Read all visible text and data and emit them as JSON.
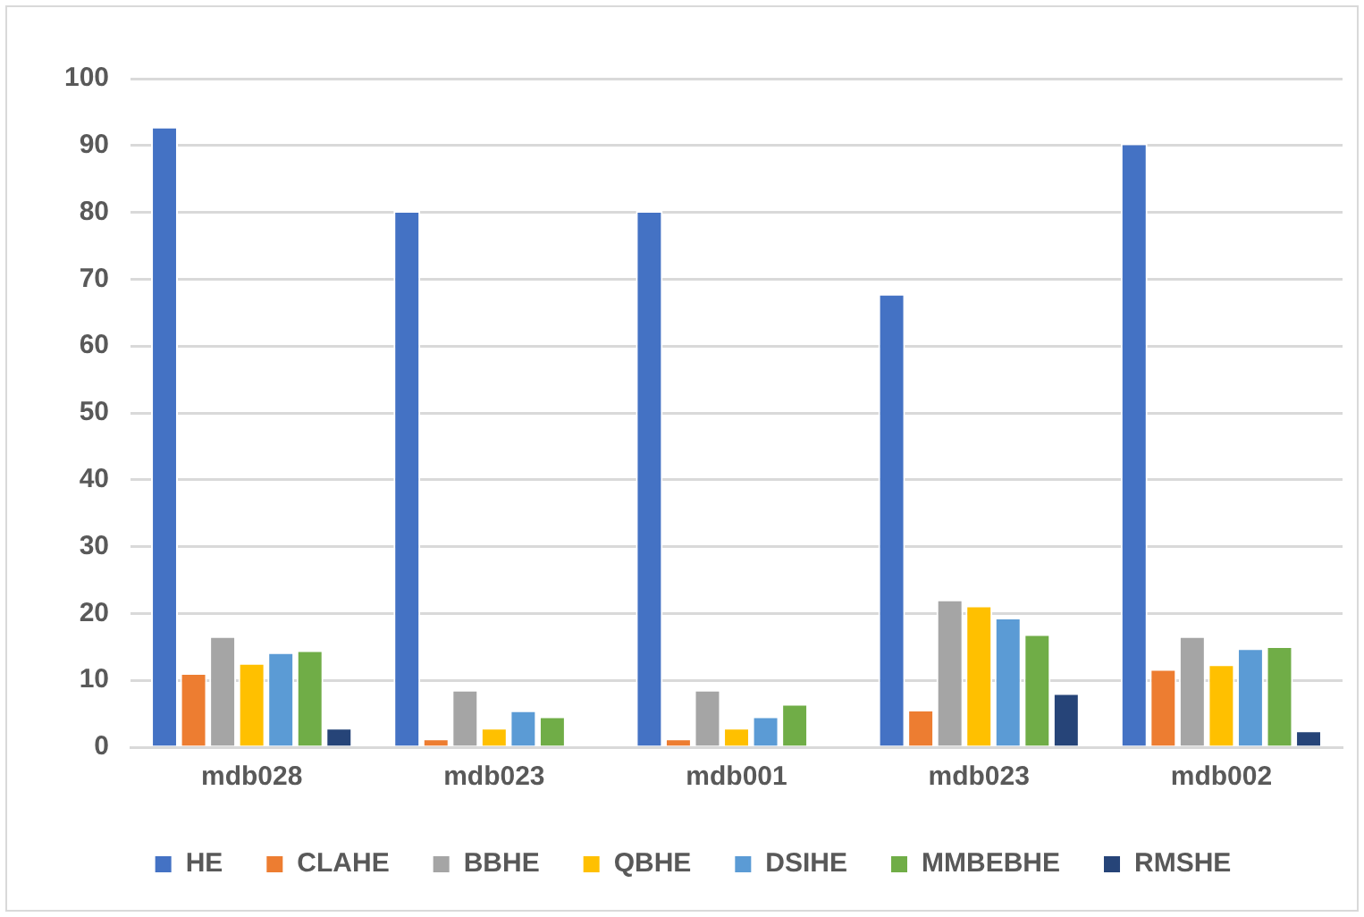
{
  "chart_data": {
    "type": "bar",
    "categories": [
      "mdb028",
      "mdb023",
      "mdb001",
      "mdb023",
      "mdb002"
    ],
    "series": [
      {
        "name": "HE",
        "color": "#4472c4",
        "values": [
          92.8,
          80.2,
          80.2,
          67.8,
          90.3
        ]
      },
      {
        "name": "CLAHE",
        "color": "#ed7d31",
        "values": [
          11.1,
          1.3,
          1.3,
          5.6,
          11.7
        ]
      },
      {
        "name": "BBHE",
        "color": "#a5a5a5",
        "values": [
          16.6,
          8.6,
          8.6,
          22.1,
          16.6
        ]
      },
      {
        "name": "QBHE",
        "color": "#ffc000",
        "values": [
          12.6,
          2.9,
          2.9,
          21.2,
          12.4
        ]
      },
      {
        "name": "DSIHE",
        "color": "#5b9bd5",
        "values": [
          14.2,
          5.5,
          4.6,
          19.4,
          14.8
        ]
      },
      {
        "name": "MMBEBHE",
        "color": "#70ad47",
        "values": [
          14.5,
          4.6,
          6.5,
          16.9,
          15.1
        ]
      },
      {
        "name": "RMSHE",
        "color": "#264478",
        "values": [
          2.9,
          null,
          null,
          8.1,
          2.5
        ]
      }
    ],
    "ylim": [
      0,
      100
    ],
    "yticks": [
      0,
      10,
      20,
      30,
      40,
      50,
      60,
      70,
      80,
      90,
      100
    ],
    "grid": "y",
    "legend": "bottom"
  }
}
